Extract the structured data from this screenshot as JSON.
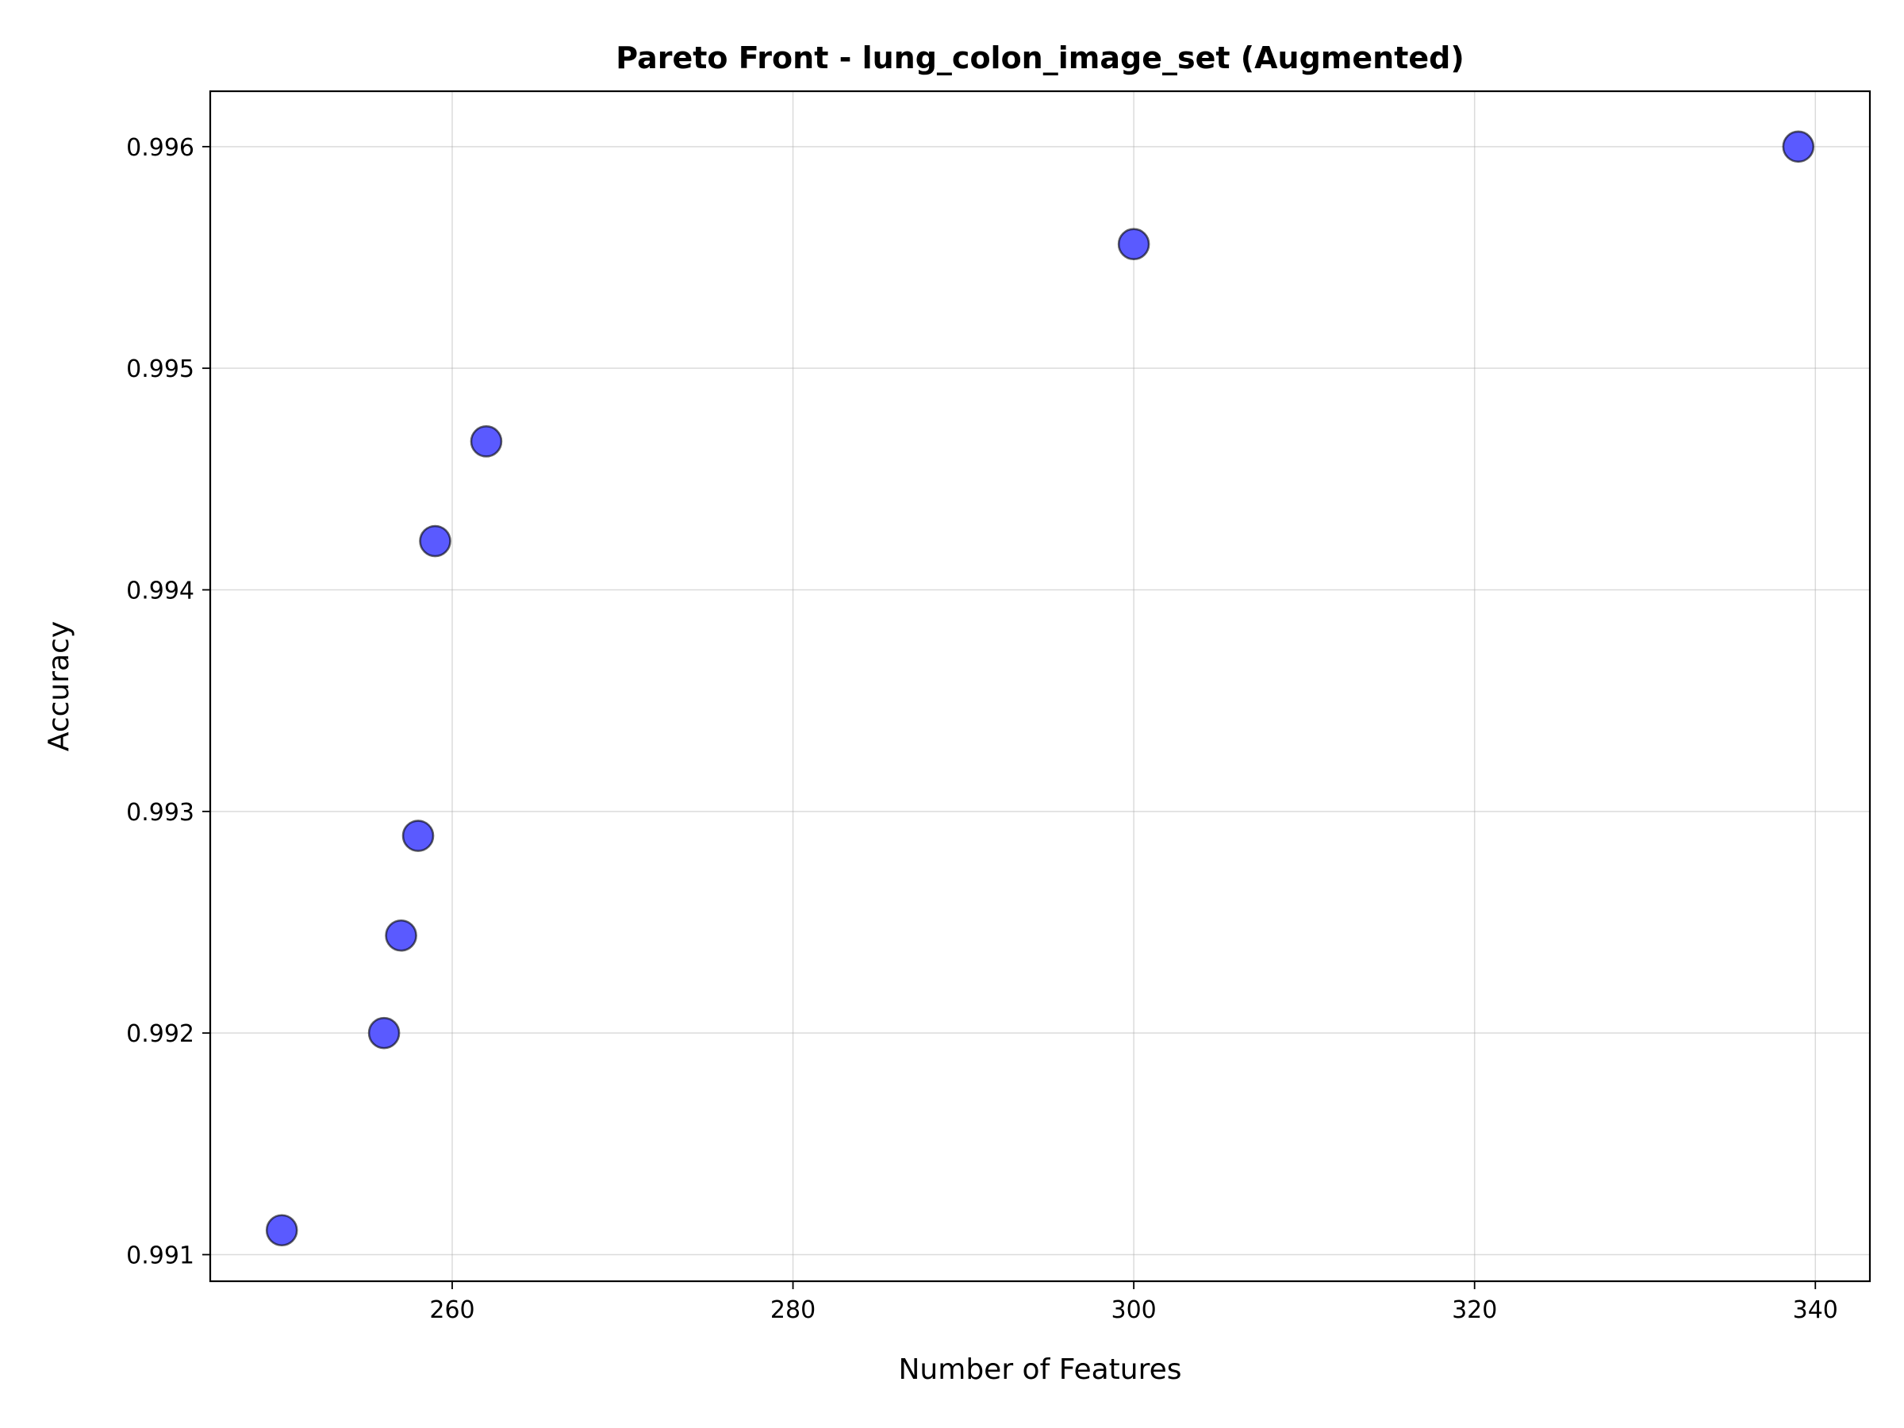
{
  "chart_data": {
    "type": "scatter",
    "title": "Pareto Front - lung_colon_image_set (Augmented)",
    "xlabel": "Number of Features",
    "ylabel": "Accuracy",
    "xlim": [
      245.8,
      343.2
    ],
    "ylim": [
      0.99088,
      0.99625
    ],
    "xticks": [
      260,
      280,
      300,
      320,
      340
    ],
    "yticks": [
      0.991,
      0.992,
      0.993,
      0.994,
      0.995,
      0.996
    ],
    "xtick_labels": [
      "260",
      "280",
      "300",
      "320",
      "340"
    ],
    "ytick_labels": [
      "0.991",
      "0.992",
      "0.993",
      "0.994",
      "0.995",
      "0.996"
    ],
    "grid": true,
    "marker_color": "#5a5aff",
    "points": [
      {
        "x": 250,
        "y": 0.99111
      },
      {
        "x": 256,
        "y": 0.992
      },
      {
        "x": 257,
        "y": 0.99244
      },
      {
        "x": 258,
        "y": 0.99289
      },
      {
        "x": 259,
        "y": 0.99422
      },
      {
        "x": 262,
        "y": 0.99467
      },
      {
        "x": 300,
        "y": 0.99556
      },
      {
        "x": 339,
        "y": 0.996
      }
    ]
  }
}
